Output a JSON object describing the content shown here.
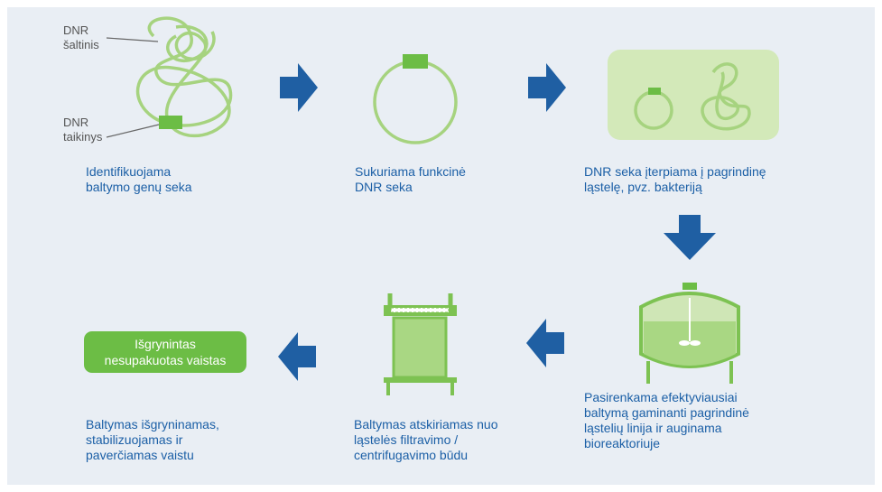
{
  "labels": {
    "source": [
      "DNR",
      "šaltinis"
    ],
    "target": [
      "DNR",
      "taikinys"
    ]
  },
  "steps": [
    {
      "caption": [
        "Identifikuojama",
        "baltymo genų seka"
      ]
    },
    {
      "caption": [
        "Sukuriama funkcinė",
        "DNR seka"
      ]
    },
    {
      "caption": [
        "DNR seka įterpiama į pagrindinę",
        "ląstelę, pvz. bakteriją"
      ]
    },
    {
      "caption": [
        "Pasirenkama efektyviausiai",
        "baltymą gaminanti pagrindinė",
        "ląstelių linija ir auginama",
        "bioreaktoriuje"
      ]
    },
    {
      "caption": [
        "Baltymas atskiriamas nuo",
        "ląstelės filtravimo /",
        "centrifugavimo būdu"
      ]
    },
    {
      "caption": [
        "Baltymas išgryninamas,",
        "stabilizuojamas ir",
        "paverčiamas vaistu"
      ]
    }
  ],
  "product_box": [
    "Išgrynintas",
    "nesupakuotas vaistas"
  ]
}
